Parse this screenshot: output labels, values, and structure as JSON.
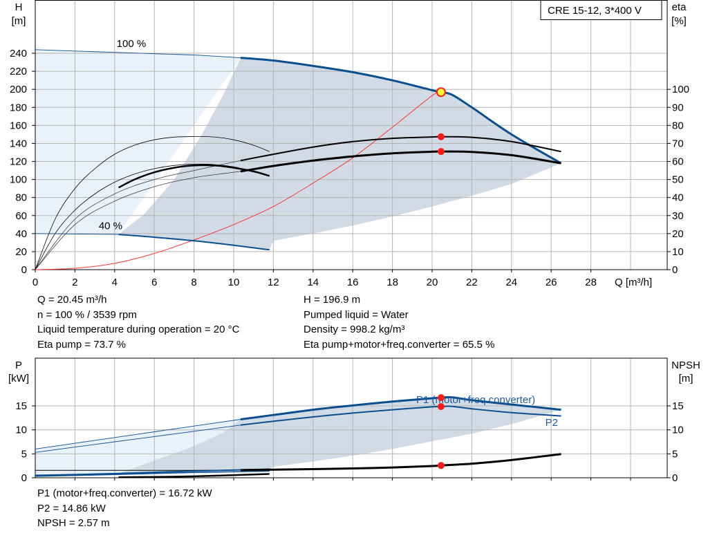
{
  "pump_label": "CRE 15-12, 3*400 V",
  "colors": {
    "axis": "#000000",
    "grid": "#b4b4b4",
    "curve_blue": "#0a4e8e",
    "curve_blue_text": "#1f5aa0",
    "region_dark": "#d1dbe6",
    "region_light": "#e9f1fb",
    "system_curve": "#ff3333",
    "operating_point": "#ff1a1a",
    "duty_point_fill": "#ffff33"
  },
  "chart_data": [
    {
      "id": "head_eta",
      "type": "line",
      "title": "",
      "xlabel": "Q [m³/h]",
      "ylabel_left_top": "H",
      "ylabel_left_unit": "[m]",
      "ylabel_right_top": "eta",
      "ylabel_right_unit": "[%]",
      "xlim": [
        0,
        31
      ],
      "ylim_left": [
        0,
        256
      ],
      "ylim_right": [
        0,
        128
      ],
      "x_ticks": [
        0,
        2,
        4,
        6,
        8,
        10,
        12,
        14,
        16,
        18,
        20,
        22,
        24,
        26,
        28
      ],
      "y_ticks_left": [
        0,
        20,
        40,
        60,
        80,
        100,
        120,
        140,
        160,
        180,
        200,
        220,
        240
      ],
      "y_ticks_right": [
        0,
        10,
        20,
        30,
        40,
        50,
        60,
        70,
        80,
        90,
        100
      ],
      "grid": true,
      "annotations": [
        {
          "text": "100 %",
          "x": 4.1,
          "y": 247
        },
        {
          "text": "40 %",
          "x": 3.2,
          "y": 45
        }
      ],
      "series": [
        {
          "role": "H_100",
          "axis": "left",
          "x": [
            0,
            2,
            4,
            6,
            8,
            10.35,
            12,
            14,
            16,
            18,
            20,
            20.45,
            21.0,
            22,
            24,
            26.5
          ],
          "values": [
            244,
            242.5,
            241,
            239.5,
            238,
            235,
            232,
            226,
            219,
            210,
            199,
            196.9,
            194,
            180,
            150,
            118
          ]
        },
        {
          "role": "H_40",
          "axis": "left",
          "x": [
            0,
            2,
            4.2,
            6,
            8,
            10,
            11.8
          ],
          "values": [
            40,
            39.6,
            39,
            36,
            32,
            27,
            22
          ]
        },
        {
          "role": "eta_pump",
          "axis": "right",
          "x": [
            10.35,
            12,
            14,
            16,
            18,
            20,
            20.45,
            22,
            24,
            26.5
          ],
          "values": [
            60.5,
            64,
            68,
            71,
            72.8,
            73.6,
            73.7,
            73.4,
            71,
            65.5
          ]
        },
        {
          "role": "eta_total",
          "axis": "right",
          "x": [
            10.35,
            12,
            14,
            16,
            18,
            20,
            20.45,
            22,
            24,
            26.5
          ],
          "values": [
            54.5,
            57.5,
            60.5,
            62.8,
            64.5,
            65.4,
            65.5,
            65.3,
            63.5,
            59
          ]
        },
        {
          "role": "eta_pump_40",
          "axis": "right",
          "x": [
            4.2,
            5,
            6,
            7,
            8,
            9,
            10,
            11,
            11.8
          ],
          "values": [
            45.5,
            50,
            54,
            56.5,
            57.8,
            57.8,
            56.5,
            54.5,
            52
          ]
        },
        {
          "role": "eta_pump_ext",
          "axis": "right",
          "x": [
            0,
            1,
            2,
            3,
            4,
            5,
            6,
            7,
            8,
            9,
            10,
            11,
            11.8
          ],
          "values": [
            0,
            28,
            45,
            56,
            64,
            69,
            72,
            73.5,
            73.8,
            73.6,
            72,
            69,
            65.5
          ]
        },
        {
          "role": "eta_total_ext",
          "axis": "right",
          "x": [
            0,
            1,
            2,
            3,
            4,
            5,
            6,
            7,
            8,
            9,
            10,
            11,
            11.8
          ],
          "values": [
            0,
            20,
            33,
            42,
            48.5,
            53,
            56,
            57.8,
            58.5,
            58.3,
            57,
            54.5,
            52
          ]
        },
        {
          "role": "eta_extra_a",
          "axis": "right",
          "x": [
            0,
            2,
            4,
            6,
            8,
            10.35
          ],
          "values": [
            0,
            28,
            42,
            50,
            55,
            60.5
          ]
        },
        {
          "role": "eta_extra_b",
          "axis": "right",
          "x": [
            0,
            2,
            4,
            6,
            8,
            10.35
          ],
          "values": [
            0,
            25,
            38,
            46,
            51,
            54.5
          ]
        },
        {
          "role": "system_curve",
          "axis": "left",
          "x": [
            0,
            2,
            4,
            6,
            8,
            10,
            12,
            14,
            16,
            18,
            20,
            20.45
          ],
          "values": [
            0,
            1.5,
            7,
            18,
            33,
            50,
            70,
            96,
            124,
            158,
            193,
            196.9
          ]
        }
      ],
      "operating_points": [
        {
          "series": "H",
          "x": 20.45,
          "y": 196.9,
          "axis": "left"
        },
        {
          "series": "eta_pump",
          "x": 20.45,
          "y": 73.7,
          "axis": "right"
        },
        {
          "series": "eta_total",
          "x": 20.45,
          "y": 65.5,
          "axis": "right"
        }
      ]
    },
    {
      "id": "power_npsh",
      "type": "line",
      "title": "",
      "xlabel": "",
      "ylabel_left_top": "P",
      "ylabel_left_unit": "[kW]",
      "ylabel_right_top": "NPSH",
      "ylabel_right_unit": "[m]",
      "xlim": [
        0,
        31
      ],
      "ylim_left": [
        0,
        20
      ],
      "ylim_right": [
        0,
        20
      ],
      "x_ticks": [],
      "y_ticks_left": [
        0,
        5,
        10,
        15
      ],
      "y_ticks_right": [
        0,
        5,
        10,
        15
      ],
      "grid": true,
      "annotations": [
        {
          "text": "P1 (motor+freq.converter)",
          "x": 19.2,
          "y": 15.6
        },
        {
          "text": "P2",
          "x": 25.7,
          "y": 10.8
        }
      ],
      "series": [
        {
          "role": "P1",
          "name": "P1 (motor+freq.converter)",
          "axis": "left",
          "x": [
            10.35,
            12,
            14,
            16,
            18,
            20,
            20.45,
            21.0,
            22,
            24,
            26.5
          ],
          "values": [
            12.2,
            13.1,
            14.2,
            15.1,
            15.9,
            16.6,
            16.72,
            16.8,
            16.2,
            15.3,
            14.2
          ]
        },
        {
          "role": "P2",
          "name": "P2",
          "axis": "left",
          "x": [
            10.35,
            12,
            14,
            16,
            18,
            20,
            20.45,
            21.0,
            22,
            24,
            26.5
          ],
          "values": [
            11.0,
            11.8,
            12.7,
            13.5,
            14.2,
            14.8,
            14.86,
            14.9,
            14.4,
            13.6,
            12.9
          ]
        },
        {
          "role": "P1_ext",
          "axis": "left",
          "x": [
            0,
            2,
            4,
            6,
            8,
            10.35
          ],
          "values": [
            6.0,
            7.2,
            8.4,
            9.6,
            10.8,
            12.2
          ]
        },
        {
          "role": "P2_ext",
          "axis": "left",
          "x": [
            0,
            2,
            4,
            6,
            8,
            10.35
          ],
          "values": [
            5.3,
            6.4,
            7.5,
            8.6,
            9.7,
            11.0
          ]
        },
        {
          "role": "P1_40",
          "axis": "left",
          "x": [
            0,
            4.2,
            8,
            11.8
          ],
          "values": [
            0.5,
            0.9,
            1.4,
            1.8
          ]
        },
        {
          "role": "P2_40",
          "axis": "left",
          "x": [
            0,
            4.2,
            8,
            11.8
          ],
          "values": [
            0.3,
            0.7,
            1.1,
            1.4
          ]
        },
        {
          "role": "NPSH",
          "axis": "right",
          "x": [
            10.35,
            12,
            14,
            16,
            18,
            20,
            20.45,
            22,
            24,
            26.5
          ],
          "values": [
            1.6,
            1.7,
            1.8,
            1.95,
            2.15,
            2.45,
            2.57,
            2.95,
            3.7,
            4.95
          ]
        },
        {
          "role": "NPSH_ext",
          "axis": "right",
          "x": [
            0,
            4,
            8,
            10.35
          ],
          "values": [
            1.55,
            1.55,
            1.55,
            1.6
          ]
        },
        {
          "role": "NPSH_40",
          "axis": "right",
          "x": [
            4.2,
            8,
            11.8
          ],
          "values": [
            0.1,
            0.3,
            0.8
          ]
        }
      ],
      "operating_points": [
        {
          "series": "P1",
          "x": 20.45,
          "y": 16.72,
          "axis": "left"
        },
        {
          "series": "P2",
          "x": 20.45,
          "y": 14.86,
          "axis": "left"
        },
        {
          "series": "NPSH",
          "x": 20.45,
          "y": 2.57,
          "axis": "right"
        }
      ]
    }
  ],
  "info_top_left": [
    "Q = 20.45 m³/h",
    "n = 100 % / 3539 rpm",
    "Liquid temperature during operation = 20 °C",
    "Eta pump = 73.7 %"
  ],
  "info_top_right": [
    "H = 196.9 m",
    "Pumped liquid = Water",
    "Density = 998.2 kg/m³",
    "Eta pump+motor+freq.converter = 65.5 %"
  ],
  "info_bottom": [
    "P1 (motor+freq.converter) = 16.72 kW",
    "P2 = 14.86 kW",
    "NPSH = 2.57 m"
  ]
}
